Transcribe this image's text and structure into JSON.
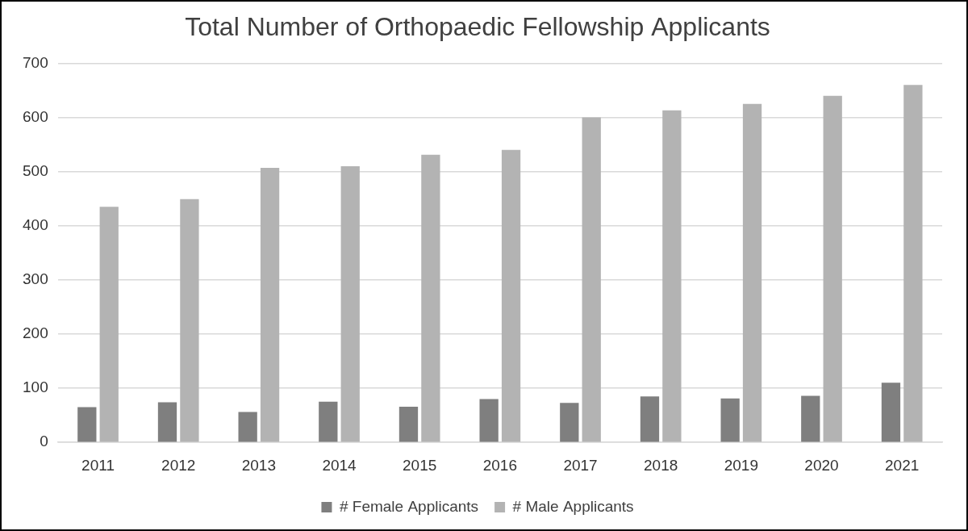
{
  "chart_data": {
    "type": "bar",
    "title": "Total Number of Orthopaedic Fellowship Applicants",
    "categories": [
      "2011",
      "2012",
      "2013",
      "2014",
      "2015",
      "2016",
      "2017",
      "2018",
      "2019",
      "2020",
      "2021"
    ],
    "series": [
      {
        "name": "# Female Applicants",
        "color": "#7f7f7f",
        "values": [
          65,
          74,
          56,
          75,
          66,
          80,
          73,
          85,
          81,
          86,
          110
        ]
      },
      {
        "name": "# Male Applicants",
        "color": "#b3b3b3",
        "values": [
          435,
          449,
          507,
          510,
          531,
          540,
          600,
          613,
          625,
          640,
          660
        ]
      }
    ],
    "ylim": [
      0,
      700
    ],
    "yticks": [
      0,
      100,
      200,
      300,
      400,
      500,
      600,
      700
    ],
    "grid": true,
    "legend": "bottom"
  }
}
